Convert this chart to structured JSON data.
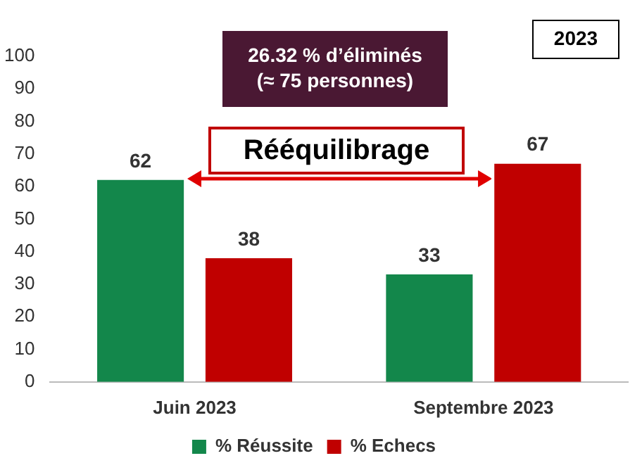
{
  "chart_data": {
    "type": "bar",
    "categories": [
      "Juin 2023",
      "Septembre 2023"
    ],
    "series": [
      {
        "name": "% Réussite",
        "color": "#13874b",
        "values": [
          62,
          33
        ]
      },
      {
        "name": "% Echecs",
        "color": "#c00000",
        "values": [
          38,
          67
        ]
      }
    ],
    "ylim": [
      0,
      100
    ],
    "yticks": [
      0,
      10,
      20,
      30,
      40,
      50,
      60,
      70,
      80,
      90,
      100
    ],
    "grid": false,
    "legend": "bottom",
    "data_labels": true,
    "annotations": [
      "26.32 % d’éliminés\n(≈ 75 personnes)",
      "Rééquilibrage",
      "2023"
    ]
  }
}
